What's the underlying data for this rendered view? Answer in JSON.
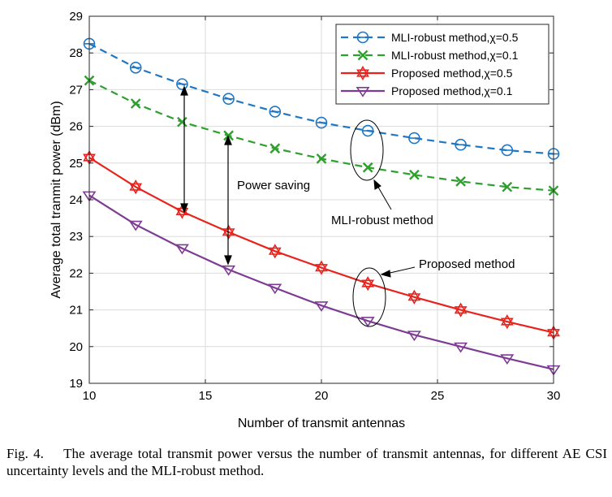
{
  "chart_data": {
    "type": "line",
    "xlabel": "Number of transmit antennas",
    "ylabel": "Average total tranmit power (dBm)",
    "xlim": [
      10,
      30
    ],
    "ylim": [
      19,
      29
    ],
    "xticks": [
      10,
      15,
      20,
      25,
      30
    ],
    "yticks": [
      19,
      20,
      21,
      22,
      23,
      24,
      25,
      26,
      27,
      28,
      29
    ],
    "grid": true,
    "legend_position": "top-right",
    "x": [
      10,
      12,
      14,
      16,
      18,
      20,
      22,
      24,
      26,
      28,
      30
    ],
    "series": [
      {
        "name": "MLI-robust method,χ=0.5",
        "color": "#1f77c4",
        "line": "dashed",
        "marker": "circle-dash",
        "values": [
          28.25,
          27.6,
          27.15,
          26.75,
          26.4,
          26.1,
          25.88,
          25.68,
          25.5,
          25.35,
          25.25
        ]
      },
      {
        "name": "MLI-robust method,χ=0.1",
        "color": "#2ea02e",
        "line": "dashed",
        "marker": "x",
        "values": [
          27.25,
          26.62,
          26.12,
          25.75,
          25.4,
          25.12,
          24.88,
          24.68,
          24.5,
          24.35,
          24.25
        ]
      },
      {
        "name": "Proposed method,χ=0.5",
        "color": "#e8231c",
        "line": "solid",
        "marker": "hexagram",
        "values": [
          25.15,
          24.35,
          23.68,
          23.12,
          22.6,
          22.15,
          21.72,
          21.35,
          21.0,
          20.68,
          20.38
        ]
      },
      {
        "name": "Proposed method,χ=0.1",
        "color": "#7e3b93",
        "line": "solid",
        "marker": "triangle-down",
        "values": [
          24.12,
          23.32,
          22.68,
          22.1,
          21.6,
          21.12,
          20.7,
          20.32,
          20.0,
          19.68,
          19.38
        ]
      }
    ],
    "annotations": {
      "power_saving": "Power saving",
      "mli_robust": "MLI-robust method",
      "proposed": "Proposed method"
    }
  },
  "caption": {
    "fig_label": "Fig. 4.",
    "text": "The average total transmit power versus the number of transmit antennas, for different AE CSI uncertainty levels and the MLI-robust method."
  }
}
